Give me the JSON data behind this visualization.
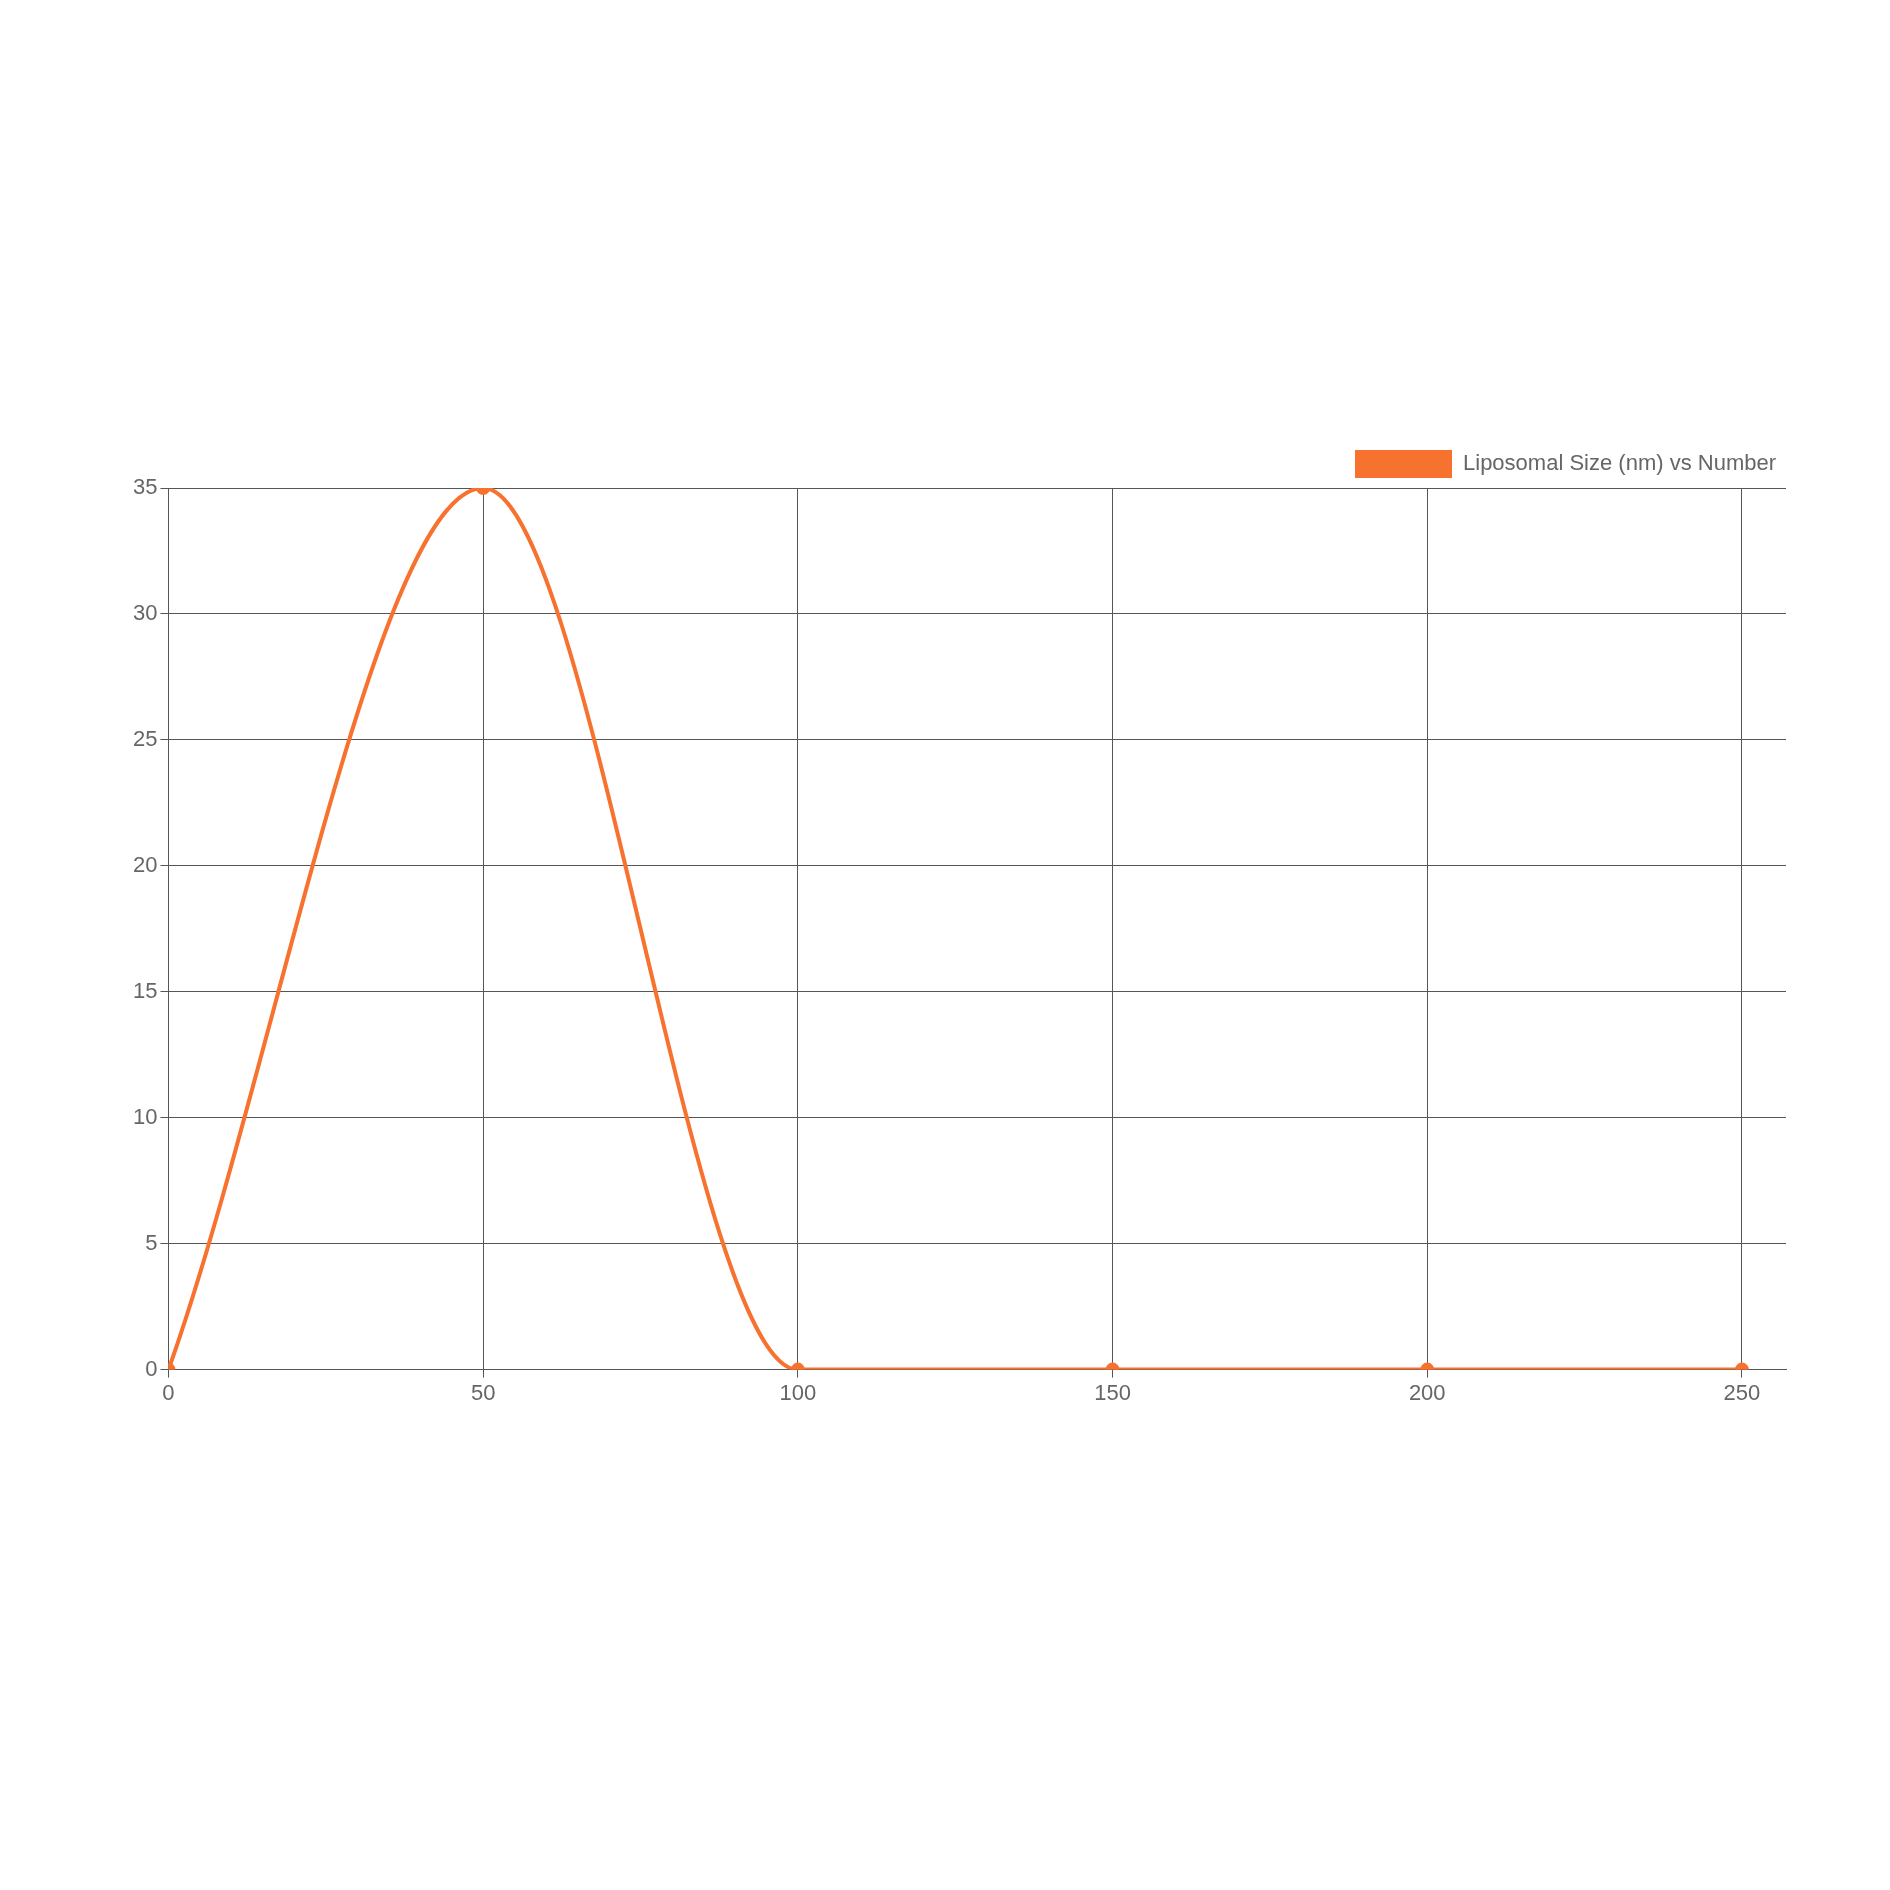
{
  "chart_data": {
    "type": "line",
    "x": [
      0,
      50,
      100,
      150,
      200,
      250
    ],
    "series": [
      {
        "name": "Liposomal Size (nm) vs Number",
        "color": "#f7712f",
        "values": [
          0,
          35,
          0,
          0,
          0,
          0
        ]
      }
    ],
    "xlim": [
      0,
      257
    ],
    "xticks": [
      0,
      50,
      100,
      150,
      200,
      250
    ],
    "ylim": [
      0,
      35
    ],
    "yticks": [
      0,
      5,
      10,
      15,
      20,
      25,
      30,
      35
    ],
    "grid": true,
    "legend": "top right",
    "marker": "circle",
    "line_style": "solid"
  }
}
